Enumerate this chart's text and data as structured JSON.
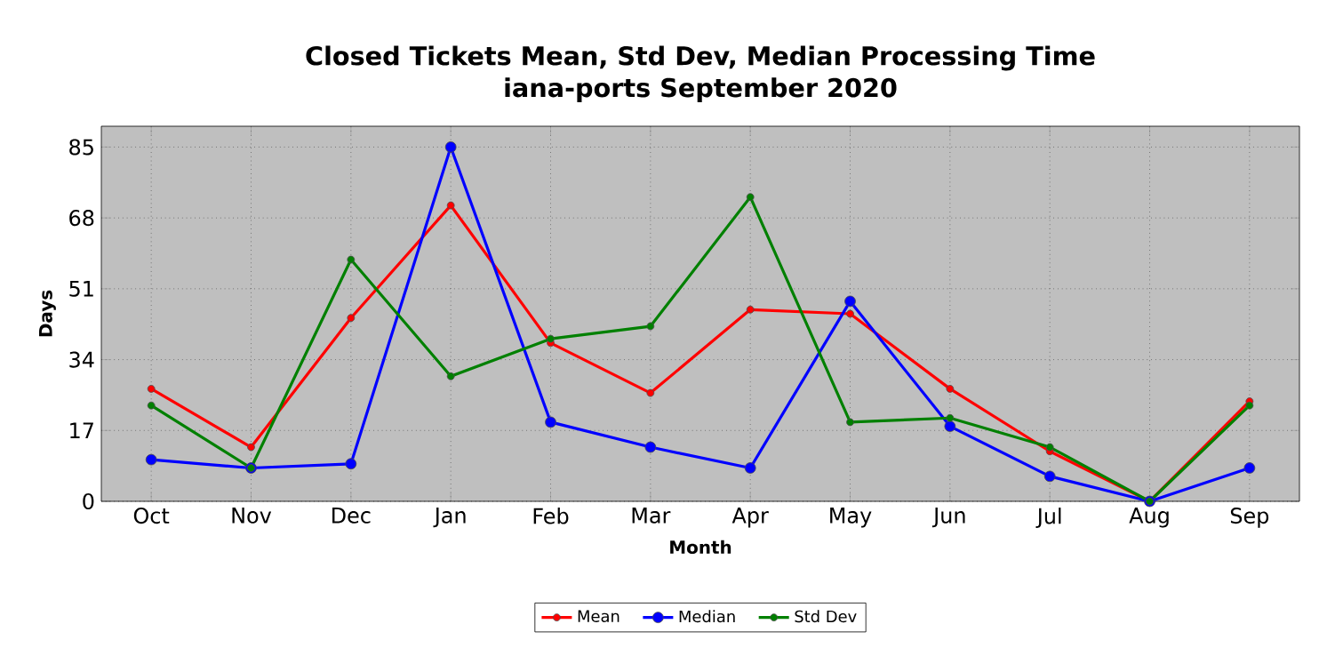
{
  "chart_data": {
    "type": "line",
    "title": "Closed Tickets Mean, Std Dev, Median Processing Time\niana-ports September 2020",
    "xlabel": "Month",
    "ylabel": "Days",
    "categories": [
      "Oct",
      "Nov",
      "Dec",
      "Jan",
      "Feb",
      "Mar",
      "Apr",
      "May",
      "Jun",
      "Jul",
      "Aug",
      "Sep"
    ],
    "series": [
      {
        "name": "Mean",
        "color": "#ff0000",
        "values": [
          27,
          13,
          44,
          71,
          38,
          26,
          46,
          45,
          27,
          12,
          0,
          24
        ]
      },
      {
        "name": "Median",
        "color": "#0000ff",
        "values": [
          10,
          8,
          9,
          85,
          19,
          13,
          8,
          48,
          18,
          6,
          0,
          8
        ]
      },
      {
        "name": "Std Dev",
        "color": "#008000",
        "values": [
          23,
          8,
          58,
          30,
          39,
          42,
          73,
          19,
          20,
          13,
          0,
          23
        ]
      }
    ],
    "ylim": [
      0,
      90
    ],
    "yticks": [
      0,
      17,
      34,
      51,
      68,
      85
    ],
    "grid": true,
    "legend": "bottom",
    "marker": "circle",
    "line_style": "solid"
  }
}
